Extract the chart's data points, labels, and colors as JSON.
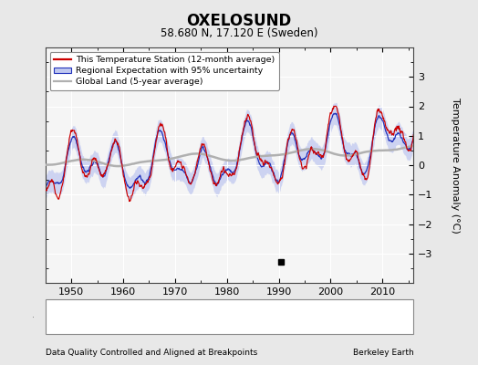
{
  "title": "OXELOSUND",
  "subtitle": "58.680 N, 17.120 E (Sweden)",
  "ylabel": "Temperature Anomaly (°C)",
  "xlabel_left": "Data Quality Controlled and Aligned at Breakpoints",
  "xlabel_right": "Berkeley Earth",
  "ylim": [
    -4,
    4
  ],
  "xlim": [
    1945,
    2016
  ],
  "xticks": [
    1950,
    1960,
    1970,
    1980,
    1990,
    2000,
    2010
  ],
  "yticks": [
    -3,
    -2,
    -1,
    0,
    1,
    2,
    3
  ],
  "background_color": "#e8e8e8",
  "plot_bg_color": "#f5f5f5",
  "red_color": "#cc0000",
  "blue_color": "#2233bb",
  "blue_fill_color": "#c0c8f0",
  "gray_color": "#b0b0b0",
  "legend_labels": [
    "This Temperature Station (12-month average)",
    "Regional Expectation with 95% uncertainty",
    "Global Land (5-year average)"
  ],
  "empirical_break_year": 1990.5,
  "empirical_break_value": -3.3,
  "seed": 12
}
